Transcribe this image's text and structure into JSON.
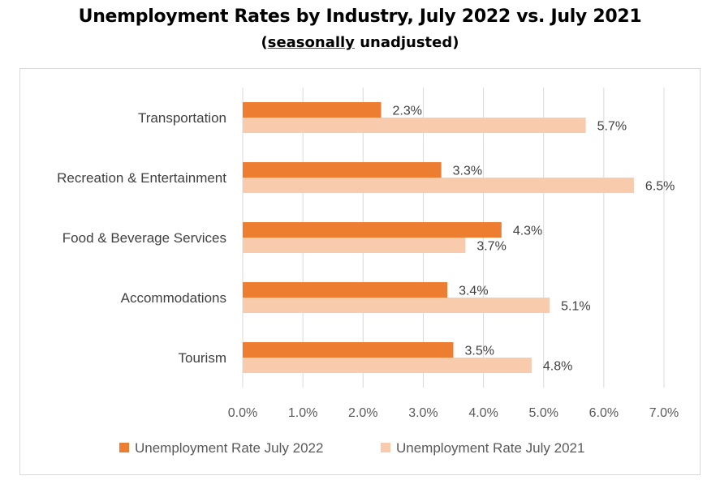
{
  "title": "Unemployment Rates by Industry, July 2022 vs. July 2021",
  "subtitle": {
    "open": "(",
    "underlined": "seasonally",
    "rest": " unadjusted)"
  },
  "chart_data": {
    "type": "bar",
    "orientation": "horizontal",
    "categories": [
      "Transportation",
      "Recreation & Entertainment",
      "Food & Beverage Services",
      "Accommodations",
      "Tourism"
    ],
    "series": [
      {
        "name": "Unemployment Rate July 2022",
        "color": "#ed7d31",
        "values": [
          2.3,
          3.3,
          4.3,
          3.4,
          3.5
        ],
        "labels": [
          "2.3%",
          "3.3%",
          "4.3%",
          "3.4%",
          "3.5%"
        ]
      },
      {
        "name": "Unemployment Rate July 2021",
        "color": "#f8cbad",
        "values": [
          5.7,
          6.5,
          3.7,
          5.1,
          4.8
        ],
        "labels": [
          "5.7%",
          "6.5%",
          "3.7%",
          "5.1%",
          "4.8%"
        ]
      }
    ],
    "xlim": [
      0,
      7
    ],
    "xticks": [
      "0.0%",
      "1.0%",
      "2.0%",
      "3.0%",
      "4.0%",
      "5.0%",
      "6.0%",
      "7.0%"
    ],
    "grid": "vertical",
    "legend": "bottom"
  }
}
